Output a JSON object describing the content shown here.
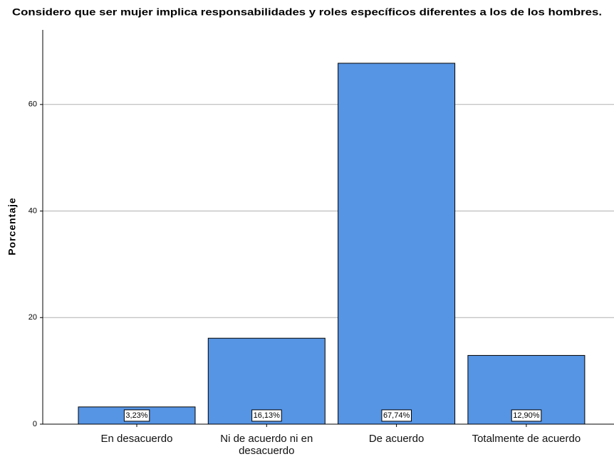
{
  "chart_data": {
    "type": "bar",
    "title": "Considero que ser mujer implica responsabilidades y roles específicos diferentes a los de los hombres.",
    "y_label": "Porcentaje",
    "categories": [
      "En desacuerdo",
      "Ni de acuerdo ni en desacuerdo",
      "De acuerdo",
      "Totalmente de acuerdo"
    ],
    "values": [
      3.23,
      16.13,
      67.74,
      12.9
    ],
    "value_labels": [
      "3,23%",
      "16,13%",
      "67,74%",
      "12,90%"
    ],
    "color": "#5694e4",
    "ylim": [
      0,
      74
    ],
    "yticks": [
      0,
      20,
      40,
      60
    ],
    "grid": true
  }
}
